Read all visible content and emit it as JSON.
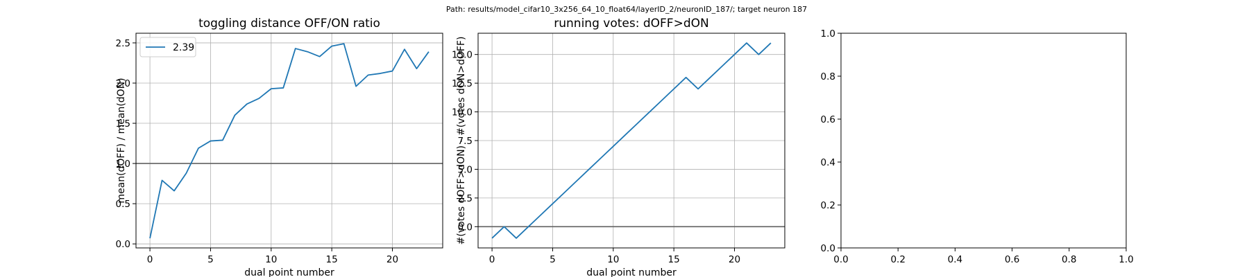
{
  "figure": {
    "suptitle": "Path: results/model_cifar10_3x256_64_10_float64/layerID_2/neuronID_187/; target neuron 187"
  },
  "chart_data": [
    {
      "type": "line",
      "title": "toggling distance OFF/ON ratio",
      "xlabel": "dual point number",
      "ylabel": "mean(dOFF) / mean(dON)",
      "xlim": [
        -1.15,
        24.15
      ],
      "ylim": [
        -0.05,
        2.62
      ],
      "xticks": [
        0,
        5,
        10,
        15,
        20
      ],
      "xtick_labels": [
        "0",
        "5",
        "10",
        "15",
        "20"
      ],
      "yticks": [
        0.0,
        0.5,
        1.0,
        1.5,
        2.0,
        2.5
      ],
      "ytick_labels": [
        "0.0",
        "0.5",
        "1.0",
        "1.5",
        "2.0",
        "2.5"
      ],
      "grid": true,
      "hline": 1.0,
      "legend": {
        "position": "upper-left",
        "entries": [
          "2.39"
        ]
      },
      "series": [
        {
          "name": "2.39",
          "color": "#1f77b4",
          "x": [
            0,
            1,
            2,
            3,
            4,
            5,
            6,
            7,
            8,
            9,
            10,
            11,
            12,
            13,
            14,
            15,
            16,
            17,
            18,
            19,
            20,
            21,
            22,
            23
          ],
          "y": [
            0.07,
            0.79,
            0.66,
            0.88,
            1.19,
            1.28,
            1.29,
            1.6,
            1.74,
            1.81,
            1.93,
            1.94,
            2.43,
            2.39,
            2.33,
            2.46,
            2.49,
            1.96,
            2.1,
            2.12,
            2.15,
            2.42,
            2.18,
            2.39
          ]
        }
      ]
    },
    {
      "type": "line",
      "title": "running votes: dOFF>dON",
      "xlabel": "dual point number",
      "ylabel": "#(votes dOFF>dON) - #(votes dON>dOFF)",
      "xlim": [
        -1.15,
        24.15
      ],
      "ylim": [
        -1.85,
        16.85
      ],
      "xticks": [
        0,
        5,
        10,
        15,
        20
      ],
      "xtick_labels": [
        "0",
        "5",
        "10",
        "15",
        "20"
      ],
      "yticks": [
        0.0,
        2.5,
        5.0,
        7.5,
        10.0,
        12.5,
        15.0
      ],
      "ytick_labels": [
        "0.0",
        "2.5",
        "5.0",
        "7.5",
        "10.0",
        "12.5",
        "15.0"
      ],
      "grid": true,
      "hline": 0.0,
      "series": [
        {
          "color": "#1f77b4",
          "x": [
            0,
            1,
            2,
            3,
            4,
            5,
            6,
            7,
            8,
            9,
            10,
            11,
            12,
            13,
            14,
            15,
            16,
            17,
            18,
            19,
            20,
            21,
            22,
            23
          ],
          "y": [
            -1,
            0,
            -1,
            0,
            1,
            2,
            3,
            4,
            5,
            6,
            7,
            8,
            9,
            10,
            11,
            12,
            13,
            12,
            13,
            14,
            15,
            16,
            15,
            16
          ]
        }
      ]
    },
    {
      "type": "line",
      "title": "",
      "xlabel": "",
      "ylabel": "",
      "xlim": [
        0,
        1
      ],
      "ylim": [
        0,
        1
      ],
      "xticks": [
        0.0,
        0.2,
        0.4,
        0.6,
        0.8,
        1.0
      ],
      "xtick_labels": [
        "0.0",
        "0.2",
        "0.4",
        "0.6",
        "0.8",
        "1.0"
      ],
      "yticks": [
        0.0,
        0.2,
        0.4,
        0.6,
        0.8,
        1.0
      ],
      "ytick_labels": [
        "0.0",
        "0.2",
        "0.4",
        "0.6",
        "0.8",
        "1.0"
      ],
      "grid": false,
      "series": []
    }
  ]
}
